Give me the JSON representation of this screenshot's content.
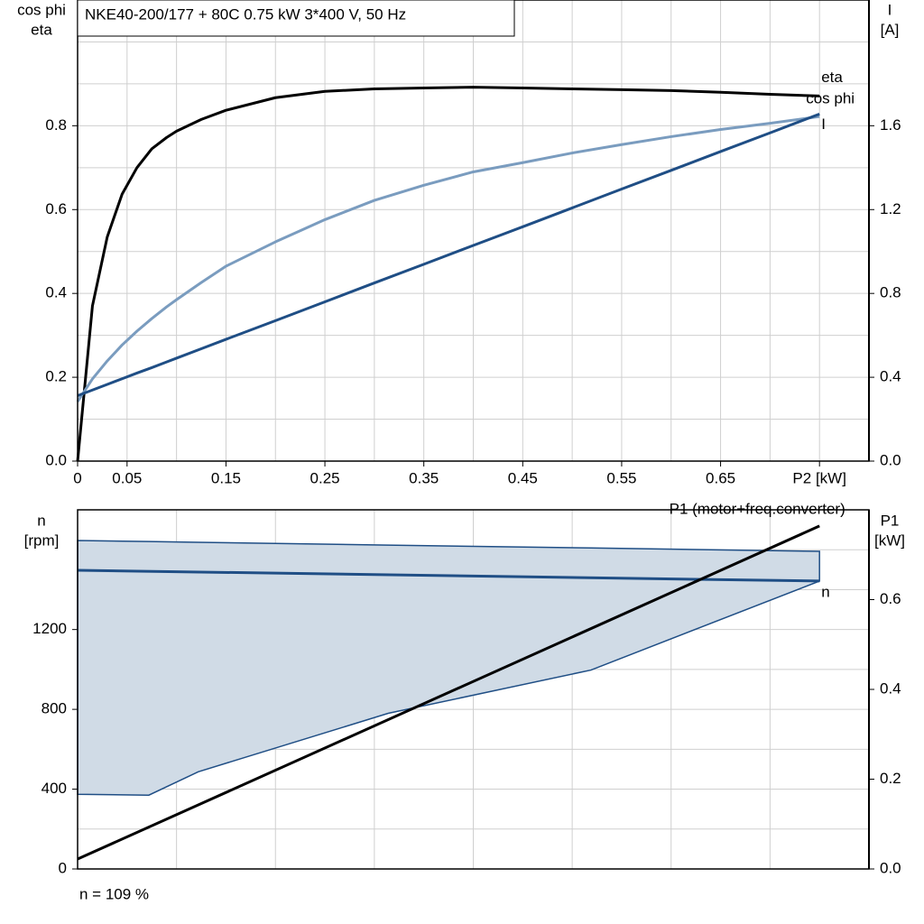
{
  "chart_data": [
    {
      "type": "line",
      "title": "NKE40-200/177 + 80C   0.75 kW   3*400 V, 50 Hz",
      "y_label": [
        "cos phi",
        "eta"
      ],
      "y2_label": [
        "I",
        "[A]"
      ],
      "xlim": [
        0,
        0.8
      ],
      "xticks": [
        0,
        0.05,
        0.15,
        0.25,
        0.35,
        0.45,
        0.55,
        0.65,
        {
          "value": 0.75,
          "label": "P2 [kW]"
        }
      ],
      "xgrid": [
        0.1,
        0.2,
        0.3,
        0.4,
        0.5,
        0.6,
        0.7
      ],
      "ylim": [
        0,
        1.1
      ],
      "yticks": [
        {
          "value": 0,
          "label": "0.0"
        },
        0.2,
        0.4,
        0.6,
        0.8
      ],
      "ygrid": [
        0.1,
        0.3,
        0.5,
        0.7,
        0.9,
        1.0
      ],
      "y2lim": [
        0,
        2.2
      ],
      "y2ticks": [
        {
          "value": 0,
          "label": "0.0"
        },
        0.4,
        0.8,
        1.2,
        1.6
      ],
      "x": [
        0,
        0.015,
        0.03,
        0.045,
        0.06,
        0.075,
        0.09,
        0.1,
        0.125,
        0.15,
        0.2,
        0.25,
        0.3,
        0.35,
        0.4,
        0.45,
        0.5,
        0.55,
        0.6,
        0.65,
        0.7,
        0.75
      ],
      "series": [
        {
          "name": "eta",
          "color": "#000000",
          "values": [
            0,
            0.37,
            0.535,
            0.637,
            0.7,
            0.745,
            0.772,
            0.787,
            0.815,
            0.837,
            0.867,
            0.882,
            0.888,
            0.89,
            0.892,
            0.89,
            0.888,
            0.886,
            0.884,
            0.88,
            0.875,
            0.871
          ]
        },
        {
          "name": "cos phi",
          "color": "#7a9cbf",
          "values": [
            0.142,
            0.196,
            0.239,
            0.277,
            0.31,
            0.34,
            0.368,
            0.385,
            0.426,
            0.465,
            0.523,
            0.576,
            0.622,
            0.658,
            0.69,
            0.712,
            0.735,
            0.755,
            0.774,
            0.791,
            0.806,
            0.822
          ]
        },
        {
          "name": "I",
          "color": "#1f4e85",
          "axis": "y2",
          "values": [
            0.312,
            0.339,
            0.366,
            0.393,
            0.42,
            0.446,
            0.473,
            0.491,
            0.536,
            0.581,
            0.67,
            0.76,
            0.85,
            0.939,
            1.029,
            1.118,
            1.208,
            1.298,
            1.387,
            1.477,
            1.566,
            1.656
          ]
        }
      ]
    },
    {
      "type": "line",
      "y_label": [
        "n",
        "[rpm]"
      ],
      "y2_label": [
        "P1",
        "[kW]"
      ],
      "note": "n = 109 %",
      "xlim": [
        0,
        0.8
      ],
      "xgrid": [
        0.1,
        0.2,
        0.3,
        0.4,
        0.5,
        0.6,
        0.7
      ],
      "ylim": [
        0,
        1800
      ],
      "yticks": [
        0,
        400,
        800,
        1200
      ],
      "ygrid": [
        200,
        600,
        1000,
        1400,
        1600
      ],
      "y2lim": [
        0,
        0.8
      ],
      "y2ticks": [
        {
          "value": 0,
          "label": "0.0"
        },
        0.2,
        0.4,
        0.6
      ],
      "area": {
        "color": "#d0dbe6",
        "line_color": "#1f4e85",
        "x": [
          0,
          0.072,
          0.122,
          0.314,
          0.519,
          0.75
        ],
        "upper": [
          1646,
          1641,
          1637,
          1623,
          1609,
          1592
        ],
        "lower": [
          374,
          370,
          487,
          780,
          997,
          1443
        ]
      },
      "series": [
        {
          "name": "n",
          "color": "#1f4e85",
          "x": [
            0,
            0.75
          ],
          "values": [
            1497,
            1443
          ]
        },
        {
          "name": "P1 (motor+freq.converter)",
          "color": "#000000",
          "axis": "y2",
          "x": [
            0,
            0.75
          ],
          "values": [
            0.022,
            0.764
          ]
        }
      ]
    }
  ]
}
